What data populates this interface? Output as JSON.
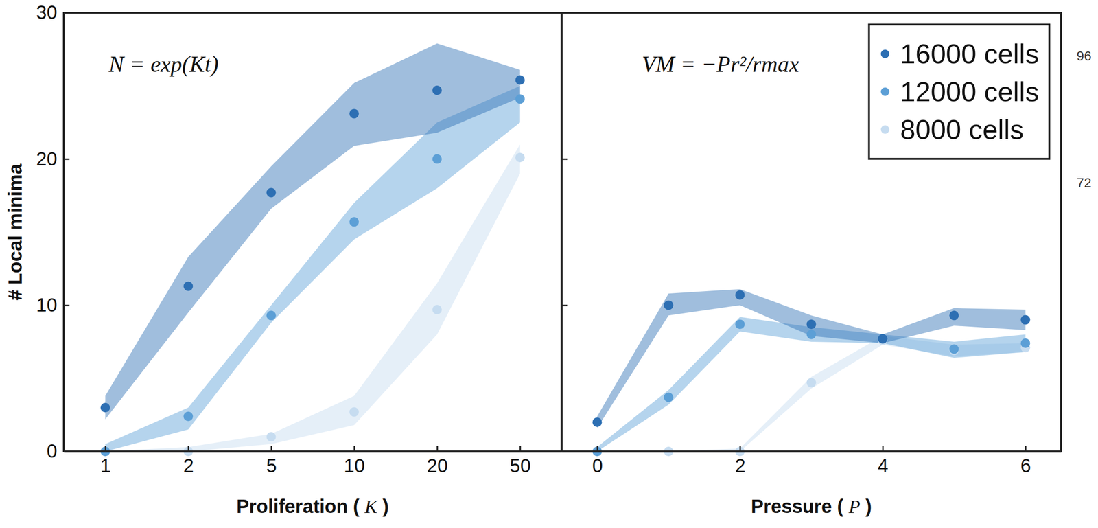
{
  "chart_data": [
    {
      "type": "scatter",
      "x_label": "Proliferation (K)",
      "y_label": "# Local minima",
      "annotation": "N = exp(Kt)",
      "categories": [
        "1",
        "2",
        "5",
        "10",
        "20",
        "50"
      ],
      "ylim": [
        0,
        30
      ],
      "yticks": [
        0,
        10,
        20,
        30
      ],
      "series": [
        {
          "name": "16000 cells",
          "color": "#2d6fb3",
          "marker": "circle",
          "values": [
            3.0,
            11.3,
            17.7,
            23.1,
            24.7,
            25.4
          ],
          "lower": [
            2.2,
            9.5,
            16.6,
            20.9,
            21.8,
            24.2
          ],
          "upper": [
            3.8,
            13.3,
            19.5,
            25.2,
            27.9,
            26.1
          ]
        },
        {
          "name": "12000 cells",
          "color": "#5c9fd6",
          "marker": "circle",
          "values": [
            0,
            2.4,
            9.3,
            15.7,
            20.0,
            24.1
          ],
          "lower": [
            0,
            1.5,
            8.8,
            14.5,
            18.0,
            22.5
          ],
          "upper": [
            0.5,
            3.0,
            10.0,
            17.0,
            22.5,
            25.0
          ]
        },
        {
          "name": "8000 cells",
          "color": "#c6dcf0",
          "marker": "circle",
          "values": [
            0,
            0,
            1.0,
            2.7,
            9.7,
            20.1
          ],
          "lower": [
            0,
            0,
            0.5,
            1.8,
            8.0,
            19.0
          ],
          "upper": [
            0,
            0.3,
            1.2,
            3.8,
            11.5,
            21.0
          ]
        }
      ]
    },
    {
      "type": "scatter",
      "x_label": "Pressure (P)",
      "annotation": "VM = −Pr²/rmax",
      "x": [
        0,
        1,
        2,
        3,
        4,
        5,
        6
      ],
      "xlim": [
        -0.5,
        6.5
      ],
      "xticks": [
        0,
        2,
        4,
        6
      ],
      "ylim": [
        0,
        30
      ],
      "yticks": [
        0,
        10,
        20,
        30
      ],
      "tick_labels": "x",
      "legend": "top-right",
      "series": [
        {
          "name": "16000 cells",
          "color": "#2d6fb3",
          "marker": "circle",
          "values": [
            2.0,
            10.0,
            10.7,
            8.7,
            7.7,
            9.3,
            9.0
          ],
          "lower": [
            1.6,
            9.3,
            10.0,
            7.9,
            7.4,
            8.6,
            8.3
          ],
          "upper": [
            2.4,
            10.8,
            11.1,
            9.3,
            8.0,
            9.8,
            9.7
          ]
        },
        {
          "name": "12000 cells",
          "color": "#5c9fd6",
          "marker": "circle",
          "values": [
            0,
            3.7,
            8.7,
            8.0,
            7.7,
            7.0,
            7.4
          ],
          "lower": [
            0,
            3.2,
            8.2,
            7.5,
            7.4,
            6.4,
            6.8
          ],
          "upper": [
            0.3,
            4.2,
            9.2,
            8.5,
            8.0,
            7.5,
            8.0
          ]
        },
        {
          "name": "8000 cells",
          "color": "#c6dcf0",
          "marker": "circle",
          "values": [
            0,
            0,
            0,
            4.7,
            7.6,
            6.9,
            7.1
          ],
          "lower": [
            0,
            0,
            0,
            4.3,
            7.3,
            6.5,
            6.8
          ],
          "upper": [
            0,
            0,
            0.2,
            5.1,
            7.9,
            7.3,
            7.4
          ]
        }
      ]
    }
  ],
  "edge_texts": [
    "96",
    "72"
  ]
}
